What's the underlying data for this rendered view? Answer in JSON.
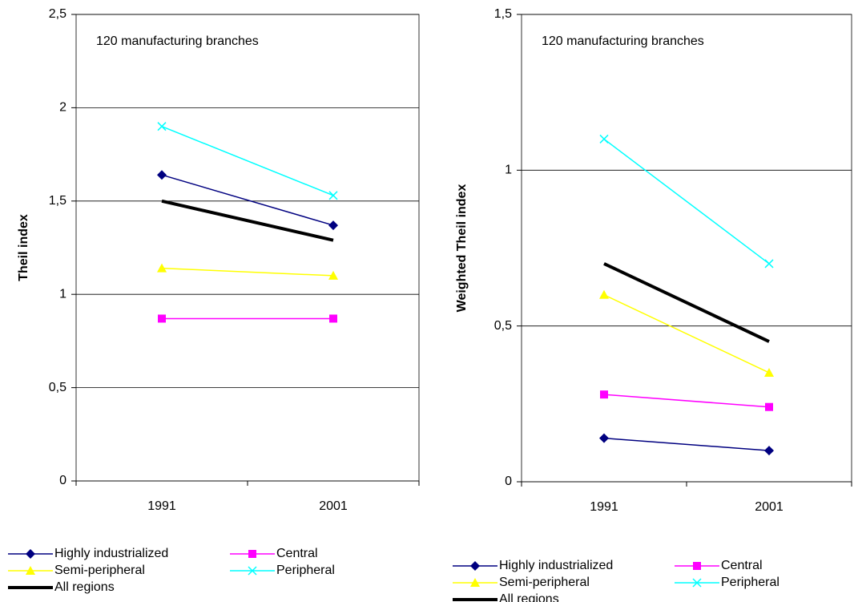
{
  "chart_data": [
    {
      "type": "line",
      "annotation": "120 manufacturing branches",
      "y_label": "Theil index",
      "categories": [
        "1991",
        "2001"
      ],
      "ylim": [
        0,
        2.5
      ],
      "yticks": [
        0,
        {
          "value": 0.5,
          "label": "0,5"
        },
        1,
        {
          "value": 1.5,
          "label": "1,5"
        },
        2,
        {
          "value": 2.5,
          "label": "2,5"
        }
      ],
      "grid": true,
      "series": [
        {
          "name": "Highly industrialized",
          "color": "#000080",
          "marker": "diamond",
          "line_width": 1.5,
          "values": [
            1.64,
            1.37
          ]
        },
        {
          "name": "Central",
          "color": "#ff00ff",
          "marker": "square",
          "line_width": 1.5,
          "values": [
            0.87,
            0.87
          ]
        },
        {
          "name": "Semi-peripheral",
          "color": "#ffff00",
          "marker": "triangle",
          "line_width": 1.5,
          "values": [
            1.14,
            1.1
          ]
        },
        {
          "name": "Peripheral",
          "color": "#00ffff",
          "marker": "x",
          "line_width": 1.5,
          "values": [
            1.9,
            1.53
          ]
        },
        {
          "name": "All regions",
          "color": "#000000",
          "marker": "none",
          "line_width": 4,
          "values": [
            1.5,
            1.29
          ]
        }
      ]
    },
    {
      "type": "line",
      "annotation": "120 manufacturing branches",
      "y_label": "Weighted Theil index",
      "categories": [
        "1991",
        "2001"
      ],
      "ylim": [
        0,
        1.5
      ],
      "yticks": [
        0,
        {
          "value": 0.5,
          "label": "0,5"
        },
        1,
        {
          "value": 1.5,
          "label": "1,5"
        }
      ],
      "grid": true,
      "series": [
        {
          "name": "Highly industrialized",
          "color": "#000080",
          "marker": "diamond",
          "line_width": 1.5,
          "values": [
            0.14,
            0.1
          ]
        },
        {
          "name": "Central",
          "color": "#ff00ff",
          "marker": "square",
          "line_width": 1.5,
          "values": [
            0.28,
            0.24
          ]
        },
        {
          "name": "Semi-peripheral",
          "color": "#ffff00",
          "marker": "triangle",
          "line_width": 1.5,
          "values": [
            0.6,
            0.35
          ]
        },
        {
          "name": "Peripheral",
          "color": "#00ffff",
          "marker": "x",
          "line_width": 1.5,
          "values": [
            1.1,
            0.7
          ]
        },
        {
          "name": "All regions",
          "color": "#000000",
          "marker": "none",
          "line_width": 4,
          "values": [
            0.7,
            0.45
          ]
        }
      ]
    }
  ]
}
